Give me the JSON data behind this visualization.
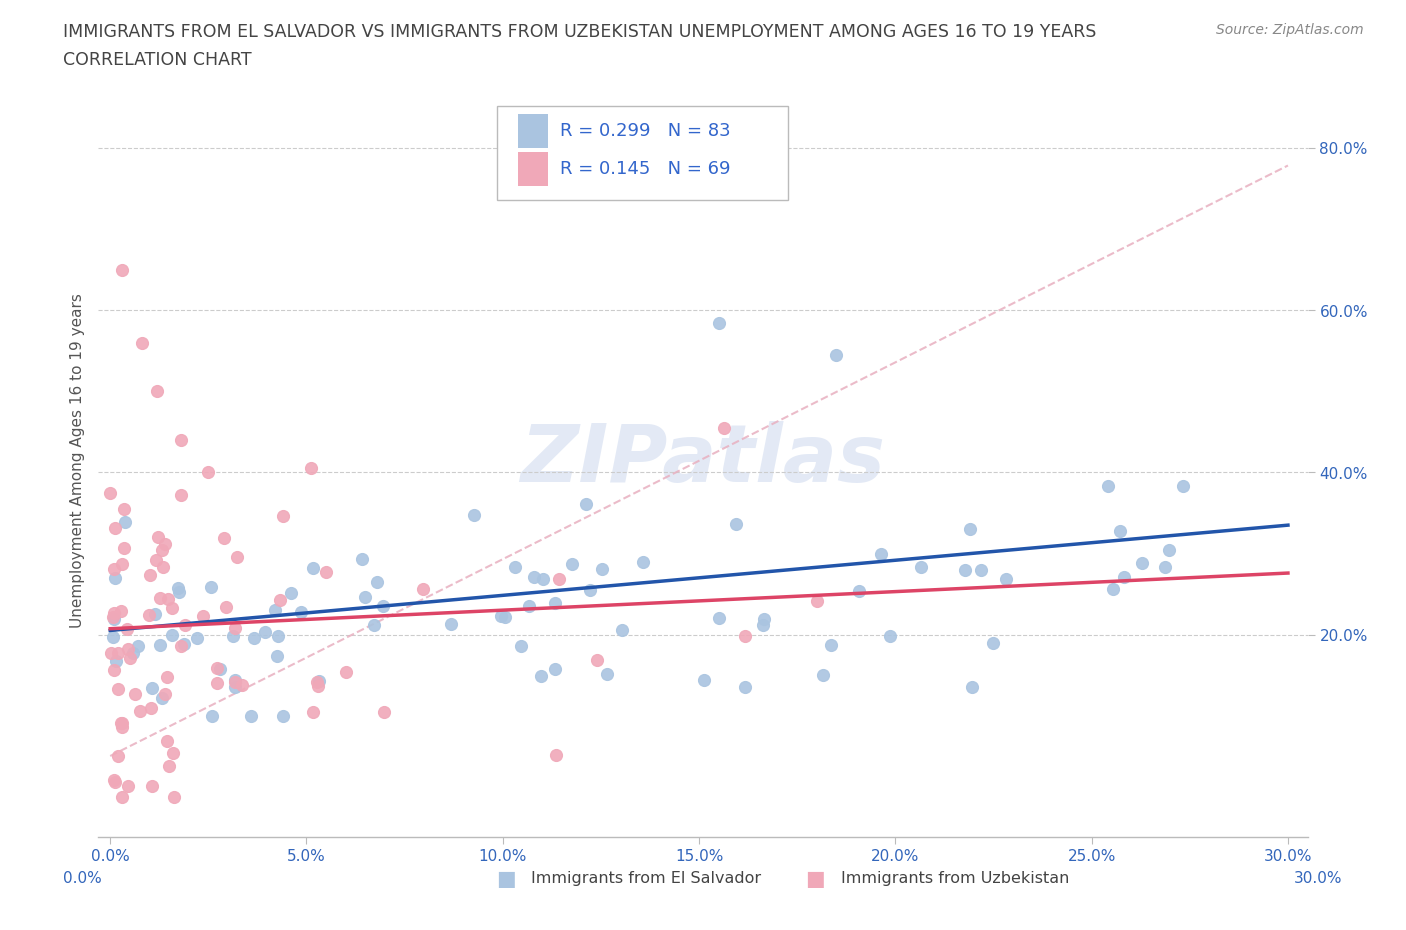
{
  "title_line1": "IMMIGRANTS FROM EL SALVADOR VS IMMIGRANTS FROM UZBEKISTAN UNEMPLOYMENT AMONG AGES 16 TO 19 YEARS",
  "title_line2": "CORRELATION CHART",
  "source_text": "Source: ZipAtlas.com",
  "ylabel": "Unemployment Among Ages 16 to 19 years",
  "xlim": [
    -0.003,
    0.305
  ],
  "ylim": [
    -0.05,
    0.88
  ],
  "xtick_labels": [
    "0.0%",
    "5.0%",
    "10.0%",
    "15.0%",
    "20.0%",
    "25.0%",
    "30.0%"
  ],
  "xtick_values": [
    0.0,
    0.05,
    0.1,
    0.15,
    0.2,
    0.25,
    0.3
  ],
  "ytick_labels": [
    "20.0%",
    "40.0%",
    "60.0%",
    "80.0%"
  ],
  "ytick_values": [
    0.2,
    0.4,
    0.6,
    0.8
  ],
  "el_salvador_color": "#aac4e0",
  "uzbekistan_color": "#f0a8b8",
  "el_salvador_line_color": "#2255aa",
  "uzbekistan_line_color": "#dd4466",
  "dashed_line_color": "#e8b0c0",
  "R_el_salvador": 0.299,
  "N_el_salvador": 83,
  "R_uzbekistan": 0.145,
  "N_uzbekistan": 69,
  "legend_label_1": "Immigrants from El Salvador",
  "legend_label_2": "Immigrants from Uzbekistan",
  "watermark": "ZIPatlas",
  "background_color": "#ffffff",
  "grid_color": "#cccccc",
  "title_color": "#444444",
  "source_color": "#888888",
  "tick_color": "#3366bb",
  "ylabel_color": "#555555"
}
